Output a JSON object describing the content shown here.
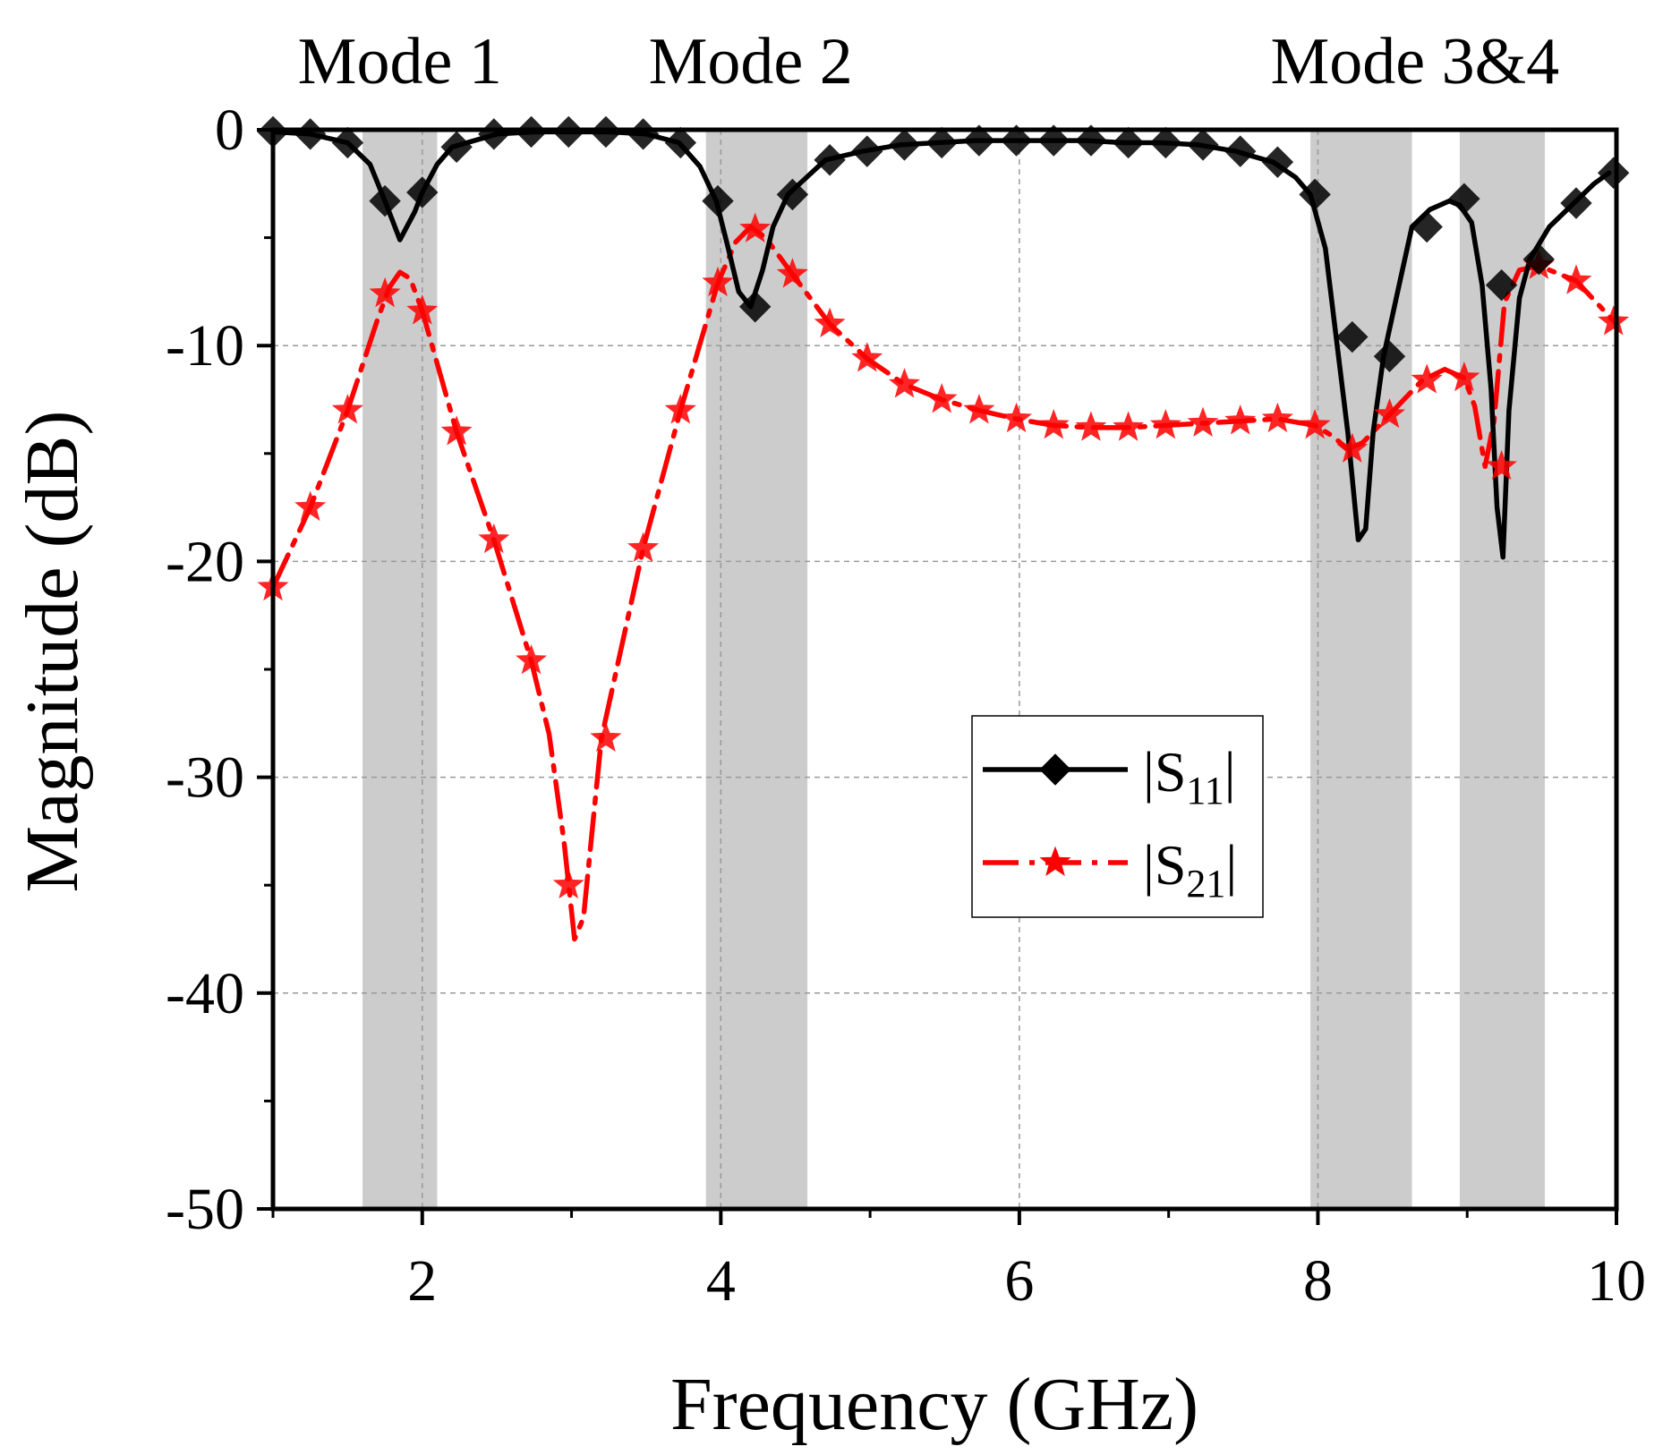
{
  "chart_data": {
    "type": "line",
    "title": "",
    "xlabel": "Frequency (GHz)",
    "ylabel": "Magnitude (dB)",
    "xlim": [
      1,
      10
    ],
    "ylim": [
      -50,
      0
    ],
    "xticks": [
      2,
      4,
      6,
      8,
      10
    ],
    "yticks": [
      0,
      -10,
      -20,
      -30,
      -40,
      -50
    ],
    "grid": true,
    "legend_position": "center-right",
    "mode_labels": [
      {
        "text": "Mode 1",
        "x": 1.85
      },
      {
        "text": "Mode 2",
        "x": 4.2
      },
      {
        "text": "Mode 3&4",
        "x": 8.65
      }
    ],
    "shaded_bands": [
      [
        1.6,
        2.1
      ],
      [
        3.9,
        4.58
      ],
      [
        7.95,
        8.63
      ],
      [
        8.95,
        9.52
      ]
    ],
    "series": [
      {
        "name": "|S11|",
        "label_main": "|S",
        "label_sub": "11",
        "label_end": "|",
        "color": "#000000",
        "marker": "diamond",
        "dash": "solid",
        "x": [
          1.0,
          1.25,
          1.5,
          1.65,
          1.75,
          1.85,
          1.95,
          2.0,
          2.1,
          2.2,
          2.5,
          2.75,
          3.0,
          3.25,
          3.5,
          3.72,
          3.86,
          3.97,
          4.05,
          4.12,
          4.2,
          4.28,
          4.35,
          4.45,
          4.7,
          4.95,
          5.2,
          5.45,
          5.7,
          5.95,
          6.2,
          6.45,
          6.7,
          6.95,
          7.2,
          7.45,
          7.7,
          7.85,
          7.95,
          8.05,
          8.12,
          8.2,
          8.27,
          8.32,
          8.37,
          8.44,
          8.55,
          8.63,
          8.75,
          8.88,
          8.95,
          9.03,
          9.1,
          9.16,
          9.2,
          9.24,
          9.28,
          9.35,
          9.42,
          9.55,
          9.7,
          9.85,
          9.95
        ],
        "y": [
          -0.1,
          -0.2,
          -0.6,
          -1.6,
          -3.3,
          -5.1,
          -3.8,
          -2.9,
          -1.6,
          -0.8,
          -0.2,
          -0.1,
          -0.1,
          -0.1,
          -0.2,
          -0.6,
          -1.7,
          -3.3,
          -5.5,
          -7.5,
          -8.2,
          -6.5,
          -4.5,
          -3.0,
          -1.4,
          -1.0,
          -0.7,
          -0.6,
          -0.5,
          -0.5,
          -0.5,
          -0.5,
          -0.6,
          -0.6,
          -0.7,
          -1.0,
          -1.5,
          -2.2,
          -3.0,
          -5.5,
          -9.5,
          -14.0,
          -19.0,
          -18.5,
          -14.0,
          -10.5,
          -7.0,
          -4.5,
          -3.7,
          -3.3,
          -3.5,
          -4.3,
          -7.2,
          -12.0,
          -17.5,
          -19.8,
          -13.0,
          -7.8,
          -6.0,
          -4.5,
          -3.5,
          -2.5,
          -2.0
        ],
        "marker_x": [
          1.0,
          1.25,
          1.5,
          1.75,
          2.0,
          2.23,
          2.48,
          2.73,
          2.98,
          3.23,
          3.48,
          3.73,
          3.98,
          4.23,
          4.48,
          4.73,
          4.98,
          5.23,
          5.48,
          5.73,
          5.98,
          6.23,
          6.48,
          6.73,
          6.98,
          7.23,
          7.48,
          7.73,
          7.98,
          8.23,
          8.48,
          8.73,
          8.98,
          9.23,
          9.48,
          9.73,
          9.98
        ],
        "marker_y": [
          -0.1,
          -0.2,
          -0.6,
          -3.3,
          -2.9,
          -0.8,
          -0.2,
          -0.1,
          -0.1,
          -0.1,
          -0.2,
          -0.6,
          -3.3,
          -8.2,
          -3.0,
          -1.4,
          -1.0,
          -0.7,
          -0.6,
          -0.5,
          -0.5,
          -0.5,
          -0.5,
          -0.6,
          -0.6,
          -0.7,
          -1.0,
          -1.5,
          -3.0,
          -9.6,
          -10.5,
          -4.5,
          -3.2,
          -7.2,
          -6.0,
          -3.4,
          -2.0
        ]
      },
      {
        "name": "|S21|",
        "label_main": "|S",
        "label_sub": "21",
        "label_end": "|",
        "color": "#ff0000",
        "marker": "star",
        "dash": "dashdot",
        "x": [
          1.0,
          1.25,
          1.5,
          1.7,
          1.78,
          1.85,
          1.92,
          2.0,
          2.23,
          2.48,
          2.73,
          2.85,
          2.95,
          3.02,
          3.08,
          3.2,
          3.48,
          3.73,
          3.98,
          4.1,
          4.2,
          4.3,
          4.48,
          4.73,
          4.98,
          5.23,
          5.48,
          5.73,
          5.98,
          6.23,
          6.48,
          6.73,
          6.98,
          7.23,
          7.48,
          7.73,
          7.98,
          8.1,
          8.2,
          8.3,
          8.48,
          8.7,
          8.85,
          8.98,
          9.05,
          9.12,
          9.18,
          9.25,
          9.35,
          9.48,
          9.73,
          10.0
        ],
        "y": [
          -21.2,
          -17.5,
          -13.0,
          -8.8,
          -7.3,
          -6.6,
          -6.9,
          -8.4,
          -14.0,
          -19.0,
          -24.6,
          -28.0,
          -33.0,
          -37.5,
          -36.5,
          -28.2,
          -19.4,
          -13.0,
          -7.1,
          -5.2,
          -4.5,
          -5.0,
          -6.7,
          -9.0,
          -10.6,
          -11.8,
          -12.5,
          -13.0,
          -13.4,
          -13.7,
          -13.8,
          -13.8,
          -13.7,
          -13.6,
          -13.5,
          -13.4,
          -13.7,
          -14.2,
          -14.8,
          -14.5,
          -13.2,
          -11.6,
          -11.1,
          -11.5,
          -12.8,
          -15.6,
          -13.5,
          -8.0,
          -6.5,
          -6.3,
          -7.0,
          -9.0
        ],
        "marker_x": [
          1.0,
          1.25,
          1.5,
          1.75,
          2.0,
          2.23,
          2.48,
          2.73,
          2.98,
          3.23,
          3.48,
          3.73,
          3.98,
          4.23,
          4.48,
          4.73,
          4.98,
          5.23,
          5.48,
          5.73,
          5.98,
          6.23,
          6.48,
          6.73,
          6.98,
          7.23,
          7.48,
          7.73,
          7.98,
          8.23,
          8.48,
          8.73,
          8.98,
          9.23,
          9.48,
          9.73,
          9.98
        ],
        "marker_y": [
          -21.2,
          -17.5,
          -13.0,
          -7.6,
          -8.4,
          -14.0,
          -19.0,
          -24.6,
          -35.0,
          -28.2,
          -19.4,
          -13.0,
          -7.1,
          -4.6,
          -6.7,
          -9.0,
          -10.6,
          -11.8,
          -12.5,
          -13.0,
          -13.4,
          -13.7,
          -13.8,
          -13.8,
          -13.7,
          -13.6,
          -13.5,
          -13.4,
          -13.7,
          -14.8,
          -13.2,
          -11.6,
          -11.5,
          -15.6,
          -6.3,
          -7.0,
          -8.9
        ]
      }
    ]
  }
}
